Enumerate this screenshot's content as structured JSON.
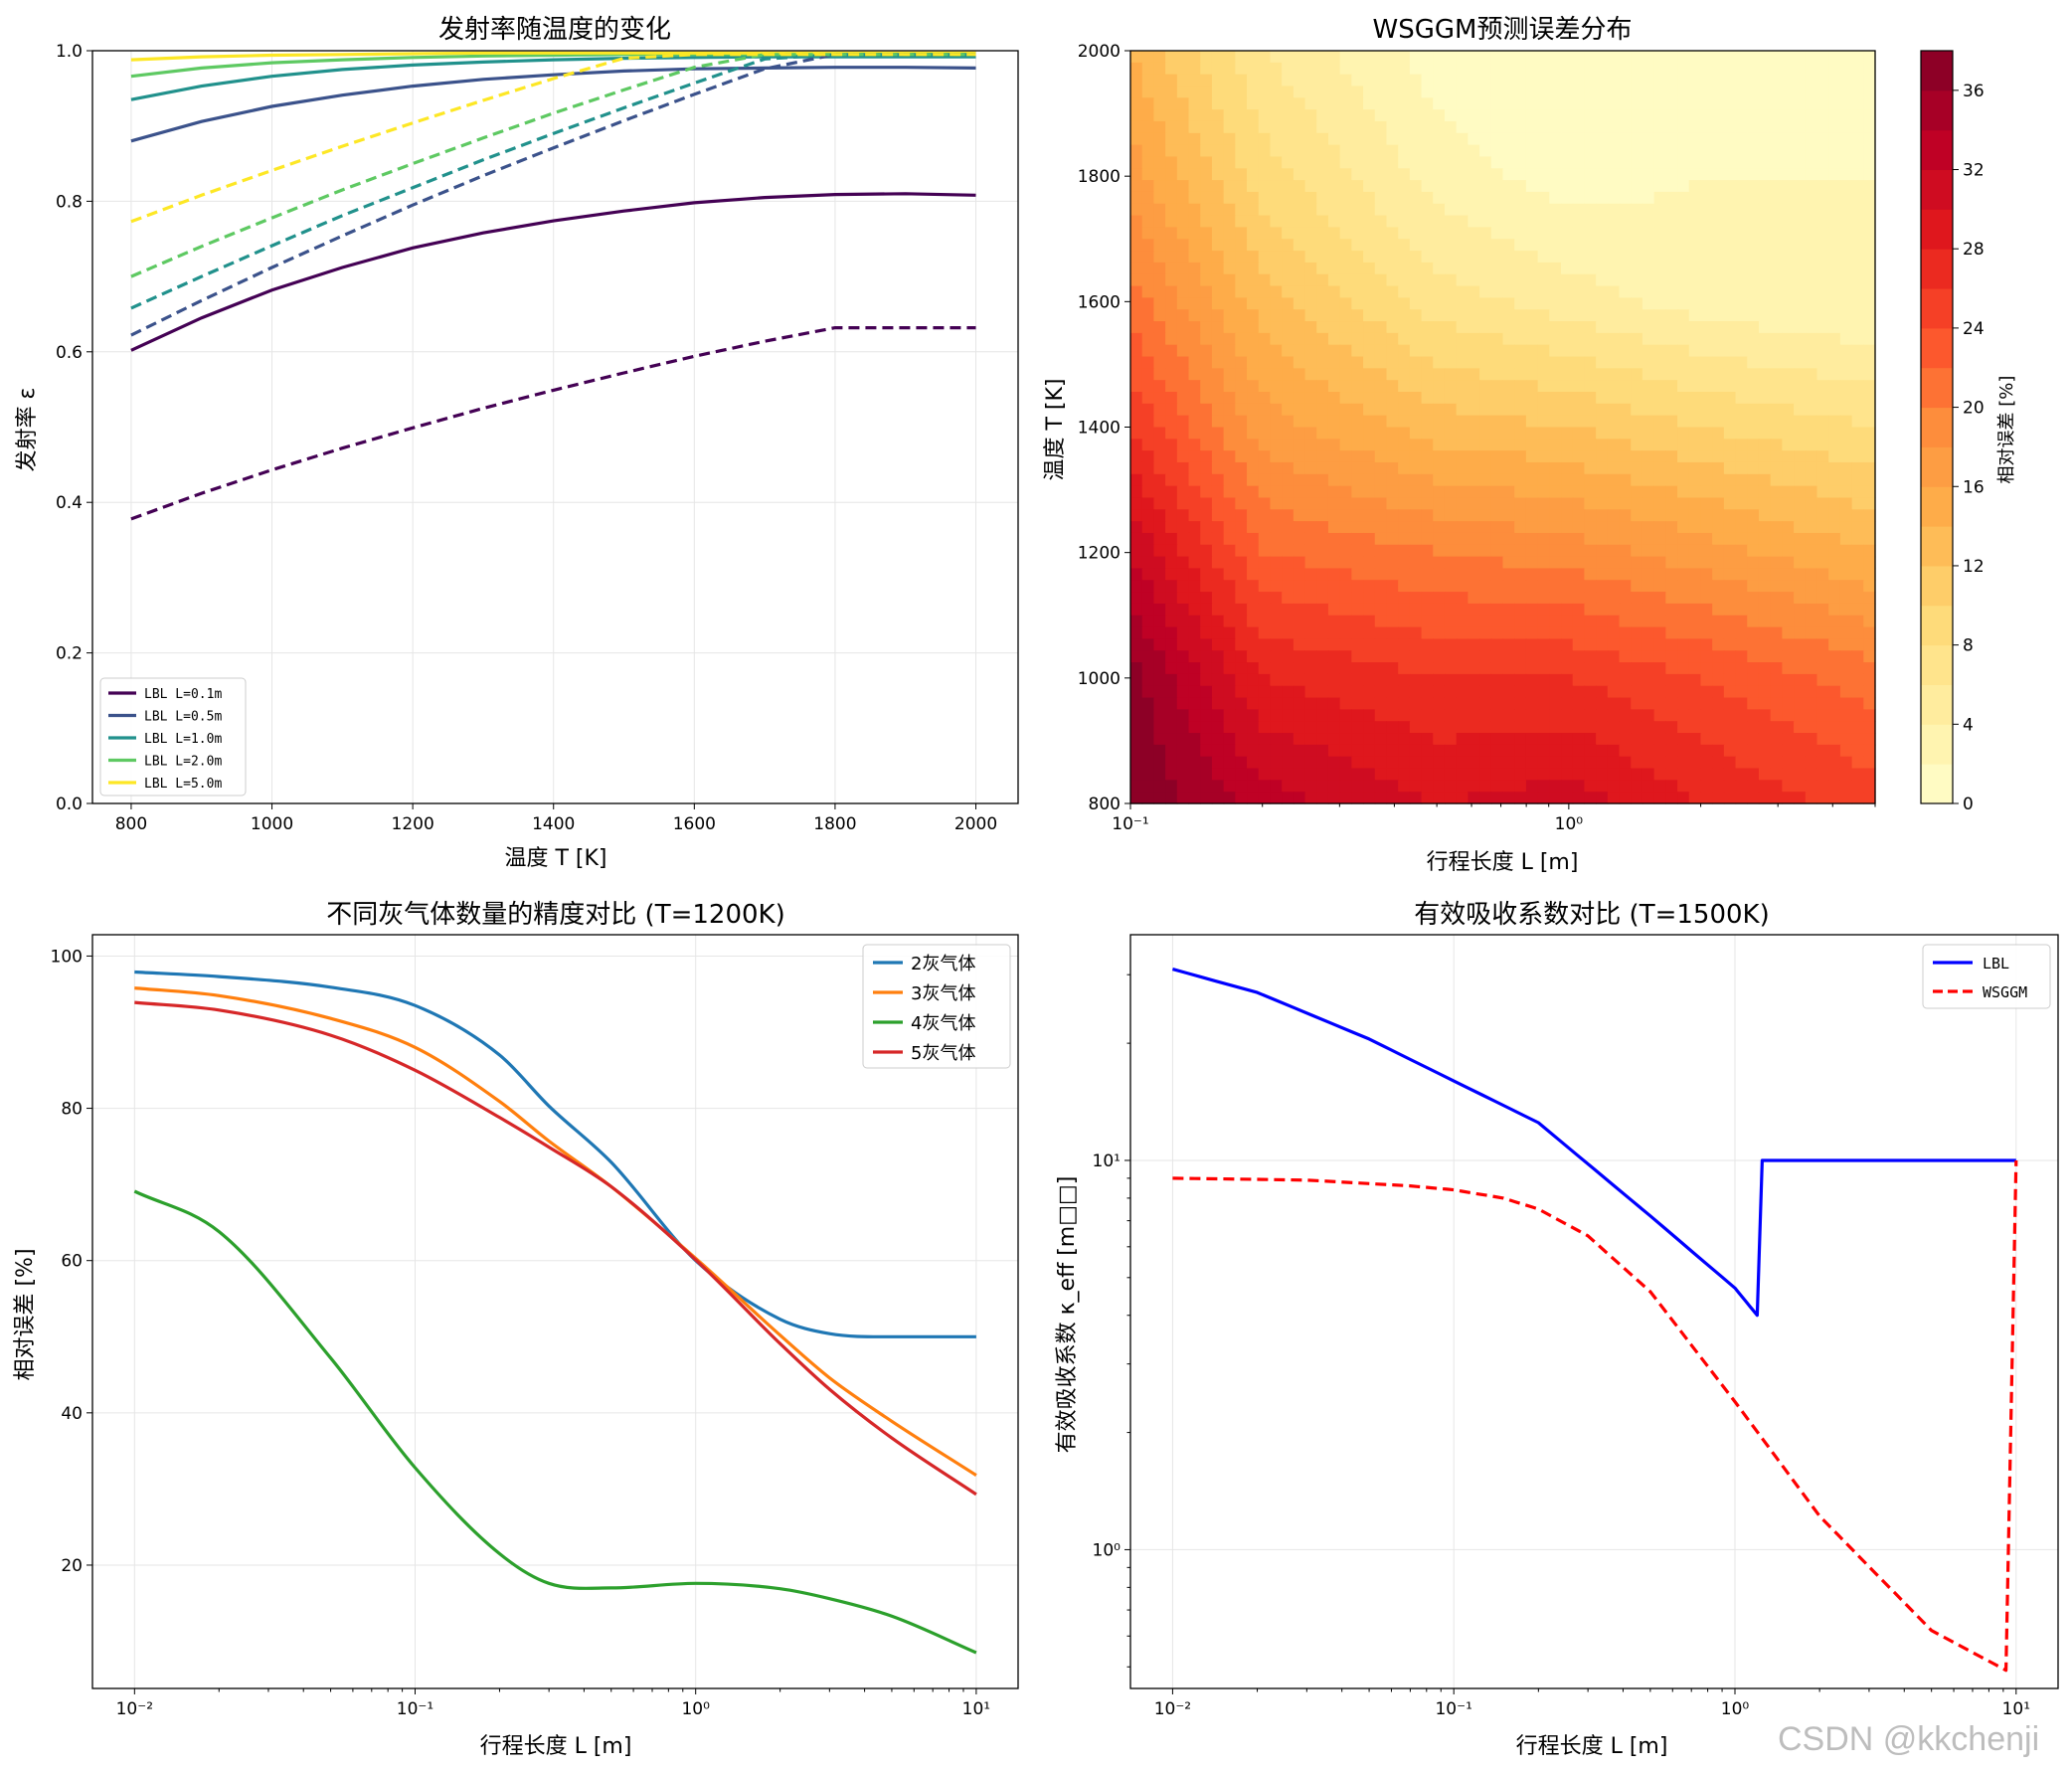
{
  "watermark": "CSDN @kkchenji",
  "chart_data": [
    {
      "type": "line",
      "title": "发射率随温度的变化",
      "xlabel": "温度 T [K]",
      "ylabel": "发射率 ε",
      "xlim": [
        745,
        2060
      ],
      "ylim": [
        0,
        1
      ],
      "xticks": [
        "800",
        "1000",
        "1200",
        "1400",
        "1600",
        "1800",
        "2000"
      ],
      "yticks": [
        "0.0",
        "0.2",
        "0.4",
        "0.6",
        "0.8",
        "1.0"
      ],
      "grid": true,
      "legend_position": "lower-left",
      "x": [
        800,
        900,
        1000,
        1100,
        1200,
        1300,
        1400,
        1500,
        1600,
        1700,
        1800,
        1900,
        2000
      ],
      "series": [
        {
          "name": "LBL L=0.1m",
          "color": "#440154",
          "dash": false,
          "values": [
            0.602,
            0.645,
            0.682,
            0.712,
            0.738,
            0.758,
            0.774,
            0.787,
            0.798,
            0.805,
            0.809,
            0.81,
            0.808
          ]
        },
        {
          "name": "LBL L=0.5m",
          "color": "#3b528b",
          "dash": false,
          "values": [
            0.88,
            0.906,
            0.926,
            0.941,
            0.953,
            0.962,
            0.968,
            0.973,
            0.976,
            0.977,
            0.978,
            0.978,
            0.977
          ]
        },
        {
          "name": "LBL L=1.0m",
          "color": "#21918c",
          "dash": false,
          "values": [
            0.935,
            0.953,
            0.966,
            0.975,
            0.981,
            0.985,
            0.988,
            0.99,
            0.991,
            0.992,
            0.992,
            0.992,
            0.992
          ]
        },
        {
          "name": "LBL L=2.0m",
          "color": "#5ec962",
          "dash": false,
          "values": [
            0.966,
            0.977,
            0.984,
            0.988,
            0.991,
            0.993,
            0.994,
            0.995,
            0.995,
            0.995,
            0.995,
            0.995,
            0.995
          ]
        },
        {
          "name": "LBL L=5.0m",
          "color": "#fde725",
          "dash": false,
          "values": [
            0.988,
            0.992,
            0.994,
            0.995,
            0.996,
            0.997,
            0.997,
            0.997,
            0.997,
            0.997,
            0.997,
            0.997,
            0.997
          ]
        },
        {
          "color": "#440154",
          "dash": true,
          "values": [
            0.378,
            0.412,
            0.443,
            0.472,
            0.499,
            0.525,
            0.549,
            0.572,
            0.594,
            0.614,
            0.632,
            0.632,
            0.632
          ]
        },
        {
          "color": "#3b528b",
          "dash": true,
          "values": [
            0.622,
            0.668,
            0.712,
            0.754,
            0.795,
            0.834,
            0.871,
            0.907,
            0.942,
            0.976,
            0.995,
            0.995,
            0.995
          ]
        },
        {
          "color": "#21918c",
          "dash": true,
          "values": [
            0.658,
            0.7,
            0.741,
            0.781,
            0.818,
            0.855,
            0.89,
            0.924,
            0.957,
            0.989,
            0.995,
            0.995,
            0.995
          ]
        },
        {
          "color": "#5ec962",
          "dash": true,
          "values": [
            0.7,
            0.74,
            0.778,
            0.815,
            0.85,
            0.884,
            0.917,
            0.948,
            0.978,
            0.995,
            0.995,
            0.995,
            0.995
          ]
        },
        {
          "color": "#fde725",
          "dash": true,
          "values": [
            0.773,
            0.808,
            0.841,
            0.873,
            0.904,
            0.934,
            0.963,
            0.99,
            0.995,
            0.995,
            0.995,
            0.995,
            0.995
          ]
        }
      ]
    },
    {
      "type": "heatmap",
      "title": "WSGGM预测误差分布",
      "xlabel": "行程长度 L [m]",
      "ylabel": "温度 T [K]",
      "x_scale": "log",
      "xlim": [
        0.1,
        5.0
      ],
      "ylim": [
        800,
        2000
      ],
      "xticks": [
        "10⁻¹",
        "10⁰"
      ],
      "yticks": [
        "800",
        "1000",
        "1200",
        "1400",
        "1600",
        "1800",
        "2000"
      ],
      "colorbar_label": "相对误差 [%]",
      "colorbar_ticks": [
        "0",
        "4",
        "8",
        "12",
        "16",
        "20",
        "24",
        "28",
        "32",
        "36"
      ],
      "colorbar_range": [
        0,
        38
      ],
      "colormap": "YlOrRd",
      "x": [
        0.1,
        0.2,
        0.5,
        1.0,
        2.0,
        5.0
      ],
      "y": [
        800,
        1000,
        1200,
        1400,
        1600,
        1800,
        2000
      ],
      "z": [
        [
          38,
          33,
          30,
          31,
          28,
          25
        ],
        [
          37,
          28,
          26,
          26,
          24,
          21
        ],
        [
          32,
          22,
          20,
          19,
          17,
          14
        ],
        [
          26,
          17,
          13,
          12,
          10,
          8
        ],
        [
          21,
          13,
          7,
          5,
          3,
          2
        ],
        [
          17,
          9,
          3,
          1,
          2,
          2
        ],
        [
          14,
          6,
          1,
          0,
          0,
          2
        ]
      ]
    },
    {
      "type": "line",
      "title": "不同灰气体数量的精度对比 (T=1200K)",
      "xlabel": "行程长度 L [m]",
      "ylabel": "相对误差 [%]",
      "x_scale": "log",
      "xlim": [
        0.00708,
        14.1
      ],
      "ylim": [
        3.8,
        102.8
      ],
      "xticks": [
        "10⁻²",
        "10⁻¹",
        "10⁰",
        "10¹"
      ],
      "yticks": [
        "20",
        "40",
        "60",
        "80",
        "100"
      ],
      "grid": true,
      "legend_position": "top-right",
      "x": [
        0.01,
        0.02,
        0.05,
        0.1,
        0.2,
        0.3,
        0.5,
        1.0,
        2.0,
        3.0,
        5.0,
        10.0
      ],
      "series": [
        {
          "name": "2灰气体",
          "color": "#1f77b4",
          "values": [
            97.9,
            97.3,
            95.9,
            93.5,
            87.0,
            80.3,
            72.9,
            60.0,
            52.3,
            50.4,
            50.0,
            50.0
          ]
        },
        {
          "name": "3灰气体",
          "color": "#ff7f0e",
          "values": [
            95.8,
            94.8,
            91.8,
            88.0,
            80.9,
            75.7,
            69.7,
            60.3,
            50.2,
            44.6,
            38.9,
            31.8
          ]
        },
        {
          "name": "4灰气体",
          "color": "#2ca02c",
          "values": [
            69.1,
            63.8,
            47.2,
            32.8,
            21.5,
            17.6,
            17.0,
            17.6,
            16.9,
            15.6,
            13.3,
            8.5
          ]
        },
        {
          "name": "5灰气体",
          "color": "#d62728",
          "values": [
            93.9,
            92.9,
            89.6,
            85.0,
            78.8,
            74.9,
            69.7,
            60.1,
            49.1,
            43.1,
            36.7,
            29.3
          ]
        }
      ]
    },
    {
      "type": "line",
      "title": "有效吸收系数对比 (T=1500K)",
      "xlabel": "行程长度 L [m]",
      "ylabel": "有效吸收系数 κ_eff [m□□]",
      "x_scale": "log",
      "y_scale": "log",
      "xlim": [
        0.00708,
        14.1
      ],
      "ylim": [
        0.44,
        38
      ],
      "xticks": [
        "10⁻²",
        "10⁻¹",
        "10⁰",
        "10¹"
      ],
      "yticks": [
        "10⁰",
        "10¹"
      ],
      "grid": true,
      "legend_position": "top-right",
      "series": [
        {
          "name": "LBL",
          "color": "#0000ff",
          "dash": false,
          "x": [
            0.01,
            0.02,
            0.05,
            0.1,
            0.2,
            0.5,
            1.0,
            1.2,
            1.25,
            2.0,
            5.0,
            10.0
          ],
          "values": [
            31.0,
            27.0,
            20.5,
            16.0,
            12.5,
            7.2,
            4.7,
            4.0,
            10.0,
            10.0,
            10.0,
            10.0
          ]
        },
        {
          "name": "WSGGM",
          "color": "#ff0000",
          "dash": true,
          "x": [
            0.01,
            0.03,
            0.07,
            0.1,
            0.15,
            0.2,
            0.3,
            0.5,
            1.0,
            2.0,
            5.0,
            9.2,
            10.0
          ],
          "values": [
            9.0,
            8.9,
            8.6,
            8.4,
            8.0,
            7.5,
            6.4,
            4.6,
            2.4,
            1.22,
            0.62,
            0.49,
            10.0
          ]
        }
      ]
    }
  ]
}
